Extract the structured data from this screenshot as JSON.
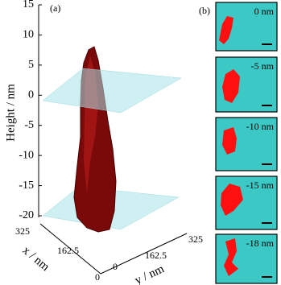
{
  "panel_a": {
    "label": "(a)",
    "z_axis": {
      "title": "Height / nm",
      "ticks": [
        "15",
        "10",
        "5",
        "0",
        "-5",
        "-10",
        "-15",
        "-20"
      ]
    },
    "x_axis": {
      "title": "x / nm",
      "ticks": [
        "325",
        "162.5",
        "0"
      ]
    },
    "y_axis": {
      "title": "y / nm",
      "ticks": [
        "0",
        "162.5",
        "325"
      ]
    }
  },
  "panel_b": {
    "label": "(b)",
    "slices": [
      {
        "label": "0 nm"
      },
      {
        "label": "-5 nm"
      },
      {
        "label": "-10 nm"
      },
      {
        "label": "-15 nm"
      },
      {
        "label": "-18 nm"
      }
    ]
  }
}
